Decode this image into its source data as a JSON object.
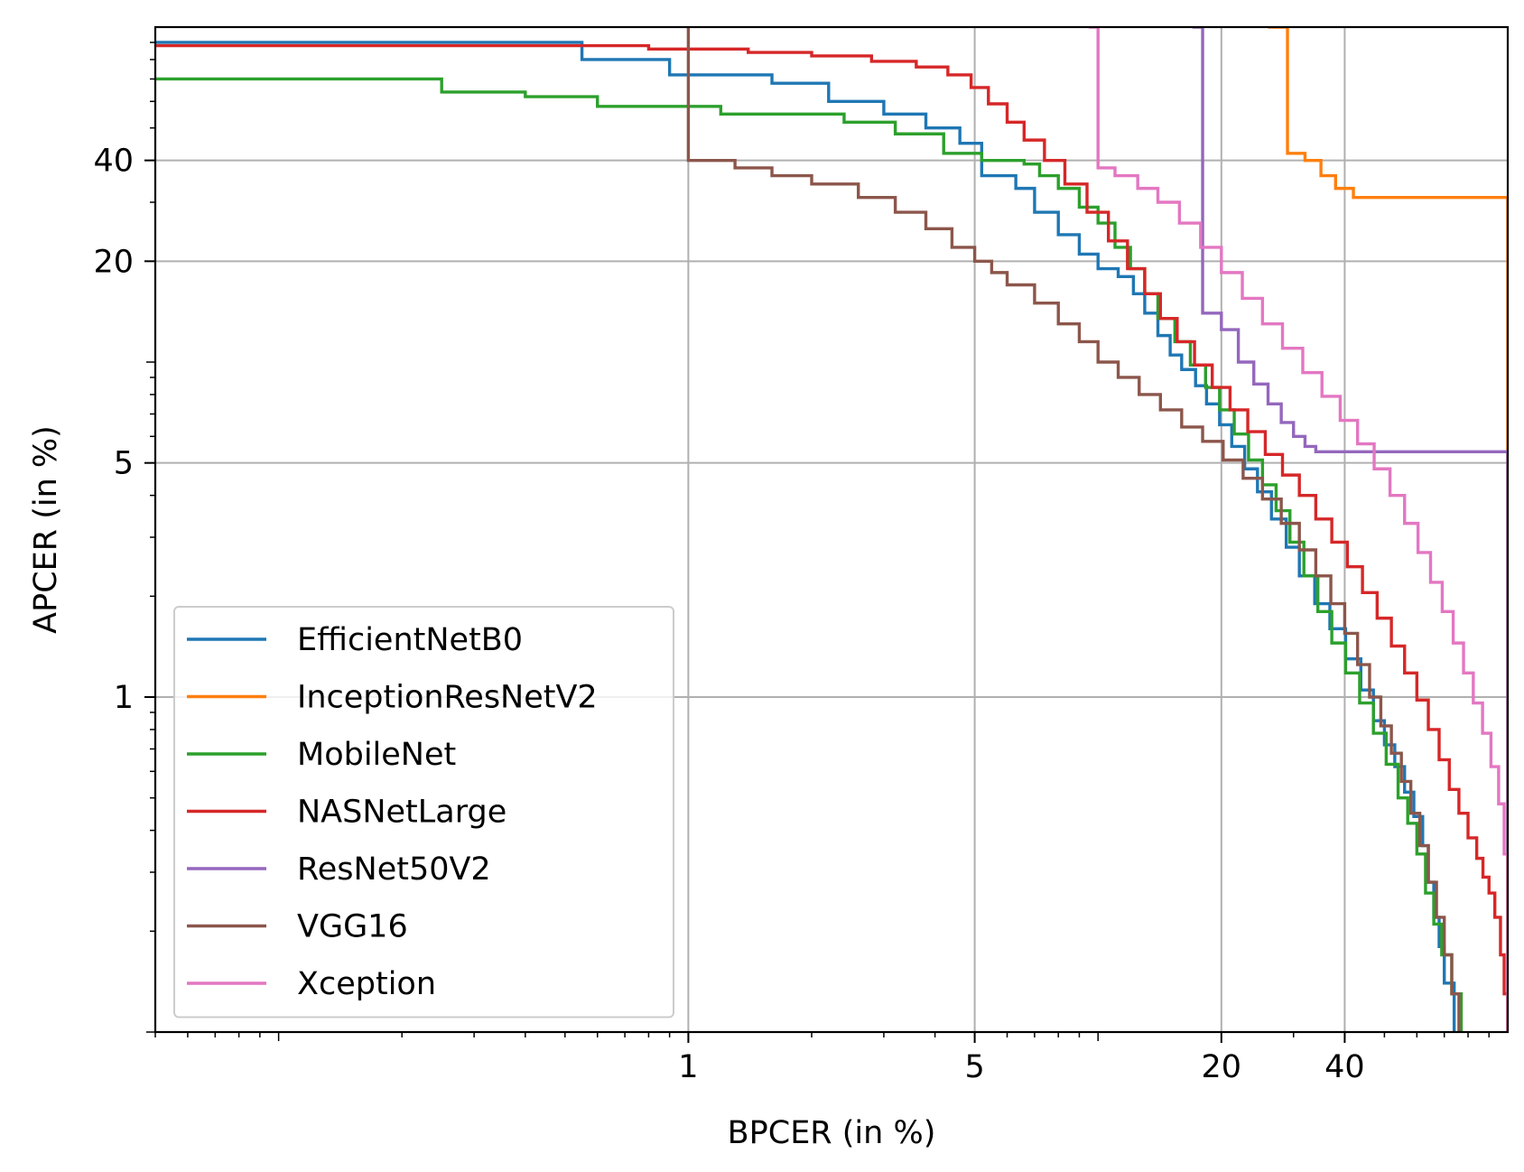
{
  "chart_data": {
    "type": "line",
    "title": "",
    "xlabel": "BPCER (in %)",
    "ylabel": "APCER (in %)",
    "xscale": "log",
    "yscale": "log",
    "xlim": [
      0.05,
      100
    ],
    "ylim": [
      0.1,
      100
    ],
    "xticks": [
      {
        "value": 1,
        "label": "1"
      },
      {
        "value": 5,
        "label": "5"
      },
      {
        "value": 20,
        "label": "20"
      },
      {
        "value": 40,
        "label": "40"
      }
    ],
    "yticks": [
      {
        "value": 1,
        "label": "1"
      },
      {
        "value": 5,
        "label": "5"
      },
      {
        "value": 20,
        "label": "20"
      },
      {
        "value": 40,
        "label": "40"
      }
    ],
    "grid": true,
    "legend_position": "lower-left",
    "series": [
      {
        "name": "EfficientNetB0",
        "color": "#1f77b4",
        "step": true,
        "points": [
          [
            0.05,
            90
          ],
          [
            0.55,
            90
          ],
          [
            0.55,
            80
          ],
          [
            0.9,
            80
          ],
          [
            0.9,
            72
          ],
          [
            1.6,
            72
          ],
          [
            1.6,
            68
          ],
          [
            2.2,
            68
          ],
          [
            2.2,
            60
          ],
          [
            3,
            60
          ],
          [
            3,
            55
          ],
          [
            3.8,
            55
          ],
          [
            3.8,
            50
          ],
          [
            4.6,
            50
          ],
          [
            4.6,
            45
          ],
          [
            5.2,
            45
          ],
          [
            5.2,
            36
          ],
          [
            6,
            36
          ],
          [
            6.3,
            33
          ],
          [
            7,
            28
          ],
          [
            8,
            24
          ],
          [
            9,
            21
          ],
          [
            10,
            19
          ],
          [
            11.2,
            18
          ],
          [
            12.2,
            16
          ],
          [
            13,
            14
          ],
          [
            14,
            12
          ],
          [
            15,
            10.5
          ],
          [
            16,
            9.5
          ],
          [
            17.3,
            8.5
          ],
          [
            18.4,
            7.5
          ],
          [
            19.8,
            6.5
          ],
          [
            21.2,
            5.6
          ],
          [
            22.8,
            4.8
          ],
          [
            24.5,
            4.1
          ],
          [
            26.5,
            3.4
          ],
          [
            28.8,
            2.8
          ],
          [
            31,
            2.3
          ],
          [
            33.8,
            1.9
          ],
          [
            36.8,
            1.6
          ],
          [
            40.2,
            1.3
          ],
          [
            43.8,
            1.05
          ],
          [
            47,
            0.85
          ],
          [
            50,
            0.72
          ],
          [
            53,
            0.62
          ],
          [
            56,
            0.52
          ],
          [
            59,
            0.44
          ],
          [
            62,
            0.36
          ],
          [
            64,
            0.28
          ],
          [
            66,
            0.22
          ],
          [
            68,
            0.18
          ],
          [
            70,
            0.14
          ],
          [
            74,
            0.1
          ]
        ]
      },
      {
        "name": "InceptionResNetV2",
        "color": "#ff7f0e",
        "step": true,
        "points": [
          [
            26,
            100
          ],
          [
            29,
            100
          ],
          [
            29,
            42
          ],
          [
            32,
            40
          ],
          [
            35,
            36
          ],
          [
            38,
            33
          ],
          [
            42,
            31
          ],
          [
            100,
            31
          ],
          [
            100,
            0.1
          ]
        ]
      },
      {
        "name": "MobileNet",
        "color": "#2ca02c",
        "step": true,
        "points": [
          [
            0.05,
            70
          ],
          [
            0.25,
            70
          ],
          [
            0.25,
            64
          ],
          [
            0.4,
            64
          ],
          [
            0.4,
            62
          ],
          [
            0.6,
            62
          ],
          [
            0.6,
            58
          ],
          [
            1.2,
            58
          ],
          [
            1.2,
            55
          ],
          [
            2.4,
            55
          ],
          [
            2.4,
            52
          ],
          [
            3.2,
            52
          ],
          [
            3.2,
            48
          ],
          [
            4.2,
            48
          ],
          [
            4.2,
            42
          ],
          [
            5.2,
            42
          ],
          [
            5.2,
            40
          ],
          [
            6,
            40
          ],
          [
            6.6,
            39
          ],
          [
            7.2,
            36
          ],
          [
            8,
            33
          ],
          [
            9,
            29
          ],
          [
            10,
            26
          ],
          [
            11,
            22
          ],
          [
            12,
            19
          ],
          [
            13,
            16
          ],
          [
            14,
            13.5
          ],
          [
            15.4,
            11.5
          ],
          [
            16.8,
            9.8
          ],
          [
            18.3,
            8.4
          ],
          [
            19.8,
            7.2
          ],
          [
            21.5,
            6.1
          ],
          [
            23.3,
            5.1
          ],
          [
            25.2,
            4.3
          ],
          [
            27.2,
            3.6
          ],
          [
            29.4,
            2.9
          ],
          [
            31.8,
            2.3
          ],
          [
            34.4,
            1.8
          ],
          [
            37.2,
            1.45
          ],
          [
            40.2,
            1.18
          ],
          [
            43.5,
            0.96
          ],
          [
            47,
            0.78
          ],
          [
            50.5,
            0.63
          ],
          [
            54,
            0.5
          ],
          [
            57,
            0.42
          ],
          [
            60,
            0.34
          ],
          [
            63,
            0.26
          ],
          [
            66,
            0.21
          ],
          [
            69,
            0.17
          ],
          [
            73,
            0.13
          ],
          [
            77,
            0.1
          ]
        ]
      },
      {
        "name": "NASNetLarge",
        "color": "#d62728",
        "step": true,
        "points": [
          [
            0.05,
            88
          ],
          [
            0.8,
            86
          ],
          [
            1.4,
            84
          ],
          [
            2,
            82
          ],
          [
            2.8,
            79
          ],
          [
            3.6,
            76
          ],
          [
            4.3,
            72
          ],
          [
            4.9,
            66
          ],
          [
            5.4,
            59
          ],
          [
            6,
            52
          ],
          [
            6.6,
            46
          ],
          [
            7.4,
            40
          ],
          [
            8.3,
            34
          ],
          [
            9.4,
            28
          ],
          [
            10.6,
            23
          ],
          [
            11.8,
            19
          ],
          [
            13,
            16
          ],
          [
            14.2,
            13.5
          ],
          [
            15.6,
            11.5
          ],
          [
            17.2,
            9.8
          ],
          [
            19,
            8.4
          ],
          [
            21,
            7.2
          ],
          [
            23.2,
            6.2
          ],
          [
            25.6,
            5.3
          ],
          [
            28.2,
            4.6
          ],
          [
            31,
            4
          ],
          [
            34,
            3.4
          ],
          [
            37.2,
            2.9
          ],
          [
            40.6,
            2.45
          ],
          [
            44.2,
            2.05
          ],
          [
            48,
            1.72
          ],
          [
            52,
            1.42
          ],
          [
            56,
            1.18
          ],
          [
            60,
            0.98
          ],
          [
            64,
            0.8
          ],
          [
            68,
            0.65
          ],
          [
            72,
            0.53
          ],
          [
            76,
            0.45
          ],
          [
            80,
            0.38
          ],
          [
            84,
            0.33
          ],
          [
            87,
            0.29
          ],
          [
            90,
            0.26
          ],
          [
            93,
            0.22
          ],
          [
            96,
            0.17
          ],
          [
            98,
            0.13
          ],
          [
            100,
            0.1
          ]
        ]
      },
      {
        "name": "ResNet50V2",
        "color": "#9467bd",
        "step": true,
        "points": [
          [
            17,
            100
          ],
          [
            18,
            100
          ],
          [
            18,
            14
          ],
          [
            20,
            12.5
          ],
          [
            22,
            10
          ],
          [
            24,
            8.6
          ],
          [
            26,
            7.5
          ],
          [
            28,
            6.6
          ],
          [
            30,
            6
          ],
          [
            32,
            5.6
          ],
          [
            34,
            5.4
          ],
          [
            100,
            5.4
          ],
          [
            100,
            0.1
          ]
        ]
      },
      {
        "name": "VGG16",
        "color": "#8c564b",
        "step": true,
        "points": [
          [
            1,
            100
          ],
          [
            1,
            40
          ],
          [
            1.3,
            38
          ],
          [
            1.6,
            36
          ],
          [
            2,
            34
          ],
          [
            2.6,
            31
          ],
          [
            3.2,
            28
          ],
          [
            3.8,
            25
          ],
          [
            4.4,
            22
          ],
          [
            5,
            20
          ],
          [
            5.5,
            18.5
          ],
          [
            6,
            17
          ],
          [
            7,
            15
          ],
          [
            8,
            13
          ],
          [
            9,
            11.5
          ],
          [
            10,
            10
          ],
          [
            11.2,
            9
          ],
          [
            12.6,
            8
          ],
          [
            14.2,
            7.2
          ],
          [
            16,
            6.4
          ],
          [
            18,
            5.8
          ],
          [
            20.2,
            5.1
          ],
          [
            22.6,
            4.5
          ],
          [
            25.2,
            3.9
          ],
          [
            28,
            3.3
          ],
          [
            31,
            2.75
          ],
          [
            34,
            2.3
          ],
          [
            37,
            1.9
          ],
          [
            40,
            1.55
          ],
          [
            43,
            1.25
          ],
          [
            46,
            1
          ],
          [
            49,
            0.82
          ],
          [
            52,
            0.68
          ],
          [
            55,
            0.56
          ],
          [
            58,
            0.45
          ],
          [
            61,
            0.36
          ],
          [
            64,
            0.28
          ],
          [
            67,
            0.22
          ],
          [
            70,
            0.17
          ],
          [
            73,
            0.13
          ],
          [
            76,
            0.1
          ]
        ]
      },
      {
        "name": "Xception",
        "color": "#e377c2",
        "step": true,
        "points": [
          [
            9.5,
            100
          ],
          [
            10,
            100
          ],
          [
            10,
            38
          ],
          [
            11,
            36
          ],
          [
            12.5,
            33
          ],
          [
            14,
            30
          ],
          [
            15.8,
            26
          ],
          [
            17.8,
            22
          ],
          [
            20,
            18.5
          ],
          [
            22.5,
            15.5
          ],
          [
            25.2,
            13
          ],
          [
            28.2,
            11
          ],
          [
            31.6,
            9.3
          ],
          [
            35.2,
            7.9
          ],
          [
            39,
            6.7
          ],
          [
            43,
            5.7
          ],
          [
            47.2,
            4.8
          ],
          [
            51.6,
            4
          ],
          [
            56,
            3.3
          ],
          [
            60.4,
            2.7
          ],
          [
            64.8,
            2.2
          ],
          [
            69.2,
            1.8
          ],
          [
            73.6,
            1.45
          ],
          [
            78,
            1.18
          ],
          [
            82.4,
            0.96
          ],
          [
            86.8,
            0.78
          ],
          [
            91,
            0.62
          ],
          [
            95,
            0.48
          ],
          [
            98,
            0.34
          ],
          [
            100,
            0.1
          ]
        ]
      }
    ]
  }
}
